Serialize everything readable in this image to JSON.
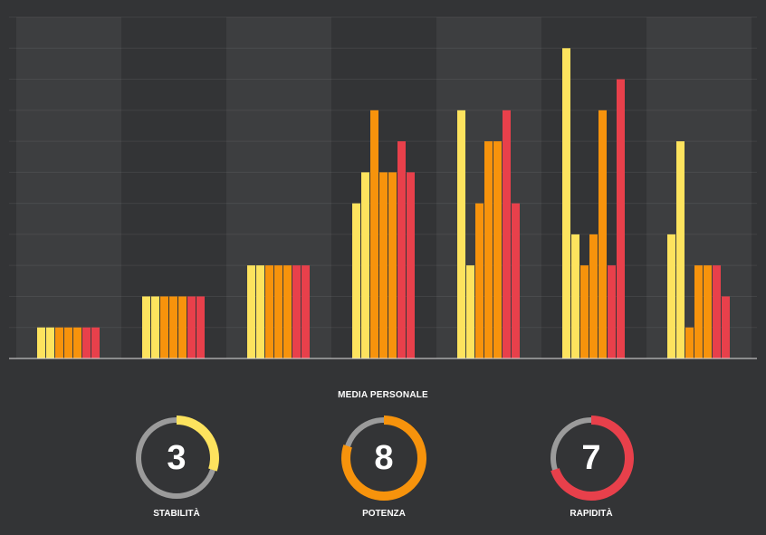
{
  "chart_data": {
    "type": "bar",
    "title": "",
    "xlabel": "",
    "ylabel": "",
    "ylim": [
      0,
      11
    ],
    "grid": true,
    "legend": "none",
    "series_colors": [
      "#fde35e",
      "#fde35e",
      "#f7930c",
      "#f7930c",
      "#f7930c",
      "#e8404b",
      "#e8404b"
    ],
    "groups": [
      [
        1,
        1,
        1,
        1,
        1,
        1,
        1
      ],
      [
        2,
        2,
        2,
        2,
        2,
        2,
        2
      ],
      [
        3,
        3,
        3,
        3,
        3,
        3,
        3
      ],
      [
        5,
        6,
        8,
        6,
        6,
        7,
        6
      ],
      [
        8,
        3,
        5,
        7,
        7,
        8,
        5
      ],
      [
        10,
        4,
        3,
        4,
        8,
        3,
        9
      ],
      [
        4,
        7,
        1,
        3,
        3,
        3,
        2
      ]
    ]
  },
  "summary": {
    "title": "MEDIA PERSONALE",
    "max": 10,
    "gauges": [
      {
        "label": "STABILITÀ",
        "value": "3",
        "fraction": 0.3,
        "color": "#fde35e"
      },
      {
        "label": "POTENZA",
        "value": "8",
        "fraction": 0.8,
        "color": "#f7930c"
      },
      {
        "label": "RAPIDITÀ",
        "value": "7",
        "fraction": 0.7,
        "color": "#e8404b"
      }
    ]
  },
  "colors": {
    "background": "#333436",
    "column_light": "#3d3e40",
    "column_dark": "#333436",
    "track": "#9b9b9b",
    "baseline": "#e0e0e0"
  }
}
